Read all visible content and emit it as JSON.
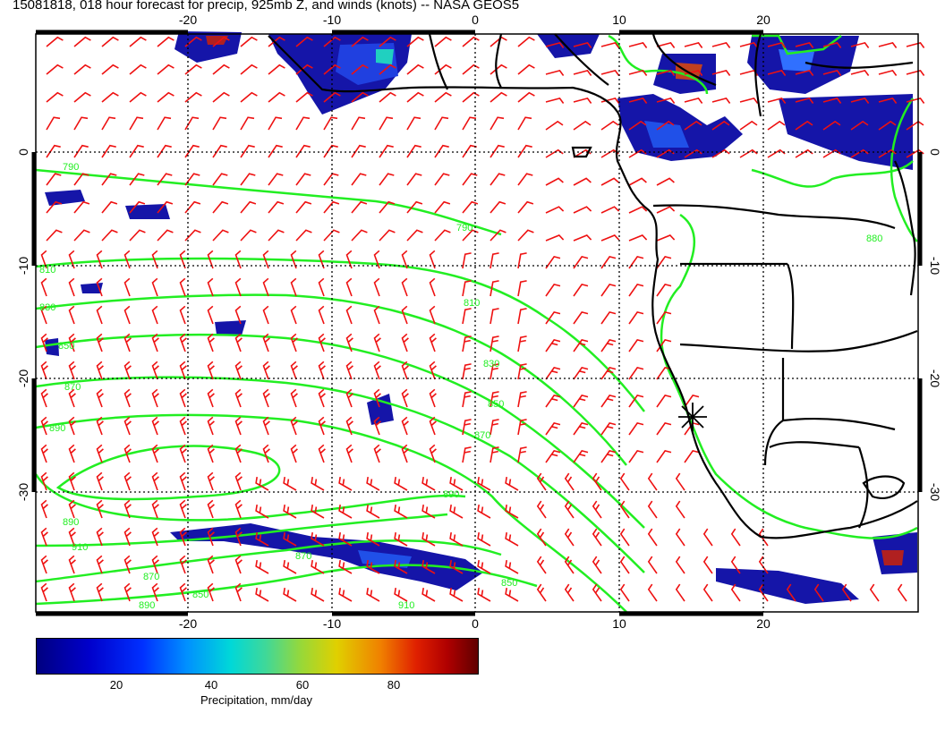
{
  "title": "15081818, 018 hour forecast for precip, 925mb Z, and winds (knots) -- NASA GEOS5",
  "map": {
    "lon_ticks": [
      "-20",
      "-10",
      "0",
      "10",
      "20"
    ],
    "lat_ticks": [
      "0",
      "-10",
      "-20",
      "-30"
    ],
    "contour_labels": [
      "790",
      "790",
      "810",
      "810",
      "830",
      "830",
      "850",
      "850",
      "850",
      "870",
      "870",
      "870",
      "870",
      "890",
      "890",
      "910",
      "890",
      "910",
      "890",
      "850",
      "880"
    ],
    "marker": "asterisk-location-marker"
  },
  "colorbar": {
    "ticks": [
      "20",
      "40",
      "60",
      "80"
    ],
    "label": "Precipitation, mm/day"
  },
  "colors": {
    "contour": "#22ee22",
    "wind_barb": "#ee1111",
    "coastline": "#000000",
    "precip_low": "#1010a0",
    "precip_high": "#a00000"
  }
}
